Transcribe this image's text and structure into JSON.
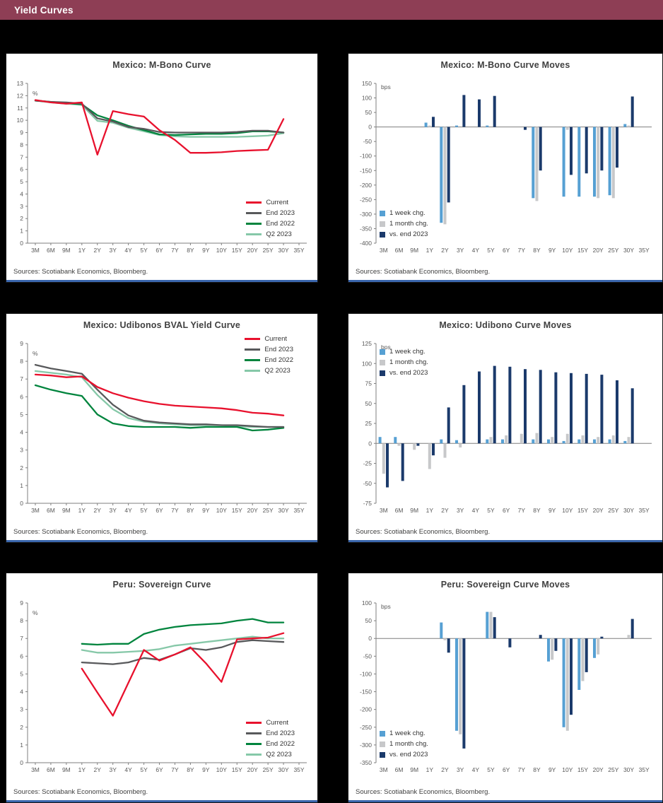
{
  "header": {
    "title": "Yield Curves"
  },
  "colors": {
    "header_bar": "#8e3e55",
    "panel_rule": "#3a66ac",
    "current_red": "#e8112d",
    "end_2023_gray": "#58595b",
    "end_2022_green": "#00843d",
    "q2_2023_light_green": "#86c8a8",
    "one_week_blue": "#56a0d3",
    "one_month_gray": "#c7c8ca",
    "vs_end_2023_navy": "#1b3a6b"
  },
  "sources_note": "Sources: Scotiabank Economics, Bloomberg.",
  "chart_data": [
    {
      "type": "line",
      "title": "Mexico: M-Bono Curve",
      "ylabel": "%",
      "ylim": [
        0,
        13
      ],
      "ytick_step": 1,
      "grid": false,
      "legend_position": "bottom-right",
      "categories": [
        "3M",
        "6M",
        "9M",
        "1Y",
        "2Y",
        "3Y",
        "4Y",
        "5Y",
        "6Y",
        "7Y",
        "8Y",
        "9Y",
        "10Y",
        "15Y",
        "20Y",
        "25Y",
        "30Y",
        "35Y"
      ],
      "series": [
        {
          "name": "Current",
          "color": "#e8112d",
          "values": [
            11.65,
            11.45,
            11.35,
            11.45,
            7.2,
            10.75,
            10.5,
            10.3,
            9.2,
            8.4,
            7.35,
            7.35,
            7.4,
            7.5,
            7.55,
            7.6,
            10.1,
            null
          ]
        },
        {
          "name": "End 2023",
          "color": "#58595b",
          "values": [
            11.6,
            11.5,
            11.45,
            11.35,
            10.15,
            9.9,
            9.45,
            9.3,
            9.05,
            9.0,
            9.0,
            9.0,
            9.0,
            9.05,
            9.15,
            9.15,
            9.0,
            null
          ]
        },
        {
          "name": "End 2022",
          "color": "#00843d",
          "values": [
            11.6,
            11.5,
            11.4,
            11.3,
            10.4,
            10.0,
            9.55,
            9.2,
            8.85,
            8.8,
            8.85,
            8.9,
            8.9,
            8.95,
            9.1,
            9.1,
            9.0,
            null
          ]
        },
        {
          "name": "Q2 2023",
          "color": "#86c8a8",
          "values": [
            11.6,
            11.45,
            11.35,
            11.25,
            9.95,
            9.8,
            9.4,
            9.1,
            8.8,
            8.7,
            8.65,
            8.65,
            8.65,
            8.65,
            8.7,
            8.75,
            8.95,
            null
          ]
        }
      ]
    },
    {
      "type": "bar",
      "title": "Mexico: M-Bono Curve Moves",
      "ylabel": "bps",
      "ylim": [
        -400,
        150
      ],
      "ytick_step": 50,
      "grid": false,
      "legend_position": "bottom-left",
      "categories": [
        "3M",
        "6M",
        "9M",
        "1Y",
        "2Y",
        "3Y",
        "4Y",
        "5Y",
        "6Y",
        "7Y",
        "8Y",
        "9Y",
        "10Y",
        "15Y",
        "20Y",
        "25Y",
        "30Y",
        "35Y"
      ],
      "series": [
        {
          "name": "1 week chg.",
          "color": "#56a0d3",
          "values": [
            0,
            0,
            0,
            15,
            -330,
            5,
            0,
            5,
            0,
            0,
            -245,
            0,
            -240,
            -240,
            -240,
            -235,
            10,
            0
          ]
        },
        {
          "name": "1 month chg.",
          "color": "#c7c8ca",
          "values": [
            0,
            0,
            0,
            5,
            -335,
            0,
            0,
            0,
            0,
            0,
            -255,
            0,
            -10,
            0,
            -245,
            -245,
            5,
            0
          ]
        },
        {
          "name": "vs. end 2023",
          "color": "#1b3a6b",
          "values": [
            0,
            0,
            0,
            35,
            -260,
            110,
            95,
            107,
            0,
            -10,
            -150,
            0,
            -165,
            -160,
            -150,
            -140,
            105,
            0
          ]
        }
      ]
    },
    {
      "type": "line",
      "title": "Mexico: Udibonos BVAL Yield Curve",
      "ylabel": "%",
      "ylim": [
        0,
        9
      ],
      "ytick_step": 1,
      "grid": false,
      "legend_position": "top-right",
      "categories": [
        "3M",
        "6M",
        "9M",
        "1Y",
        "2Y",
        "3Y",
        "4Y",
        "5Y",
        "6Y",
        "7Y",
        "8Y",
        "9Y",
        "10Y",
        "15Y",
        "20Y",
        "25Y",
        "30Y",
        "35Y"
      ],
      "series": [
        {
          "name": "Current",
          "color": "#e8112d",
          "values": [
            7.25,
            7.2,
            7.1,
            7.15,
            6.55,
            6.2,
            5.95,
            5.75,
            5.6,
            5.5,
            5.45,
            5.4,
            5.35,
            5.25,
            5.1,
            5.05,
            4.95,
            null
          ]
        },
        {
          "name": "End 2023",
          "color": "#58595b",
          "values": [
            7.8,
            7.6,
            7.45,
            7.3,
            6.4,
            5.55,
            4.95,
            4.65,
            4.55,
            4.5,
            4.45,
            4.45,
            4.4,
            4.4,
            4.35,
            4.3,
            4.3,
            null
          ]
        },
        {
          "name": "End 2022",
          "color": "#00843d",
          "values": [
            6.65,
            6.4,
            6.2,
            6.05,
            5.0,
            4.5,
            4.35,
            4.3,
            4.3,
            4.3,
            4.25,
            4.3,
            4.3,
            4.3,
            4.1,
            4.15,
            4.25,
            null
          ]
        },
        {
          "name": "Q2 2023",
          "color": "#86c8a8",
          "values": [
            7.45,
            7.35,
            7.25,
            7.1,
            6.1,
            5.3,
            4.8,
            4.6,
            4.5,
            4.45,
            4.4,
            4.4,
            4.4,
            4.35,
            4.3,
            4.3,
            4.3,
            null
          ]
        }
      ]
    },
    {
      "type": "bar",
      "title": "Mexico: Udibono Curve Moves",
      "ylabel": "bps",
      "ylim": [
        -75,
        125
      ],
      "ytick_step": 25,
      "grid": false,
      "legend_position": "top-left",
      "categories": [
        "3M",
        "6M",
        "9M",
        "1Y",
        "2Y",
        "3Y",
        "4Y",
        "5Y",
        "6Y",
        "7Y",
        "8Y",
        "9Y",
        "10Y",
        "15Y",
        "20Y",
        "25Y",
        "30Y",
        "35Y"
      ],
      "series": [
        {
          "name": "1 week chg.",
          "color": "#56a0d3",
          "values": [
            8,
            8,
            0,
            0,
            5,
            4,
            0,
            5,
            5,
            0,
            5,
            5,
            3,
            5,
            5,
            5,
            3,
            0
          ]
        },
        {
          "name": "1 month chg.",
          "color": "#c7c8ca",
          "values": [
            -38,
            -3,
            -8,
            -32,
            -18,
            -5,
            0,
            8,
            10,
            12,
            13,
            8,
            12,
            10,
            8,
            10,
            8,
            0
          ]
        },
        {
          "name": "vs. end 2023",
          "color": "#1b3a6b",
          "values": [
            -55,
            -47,
            -3,
            -15,
            45,
            73,
            90,
            97,
            96,
            93,
            92,
            89,
            88,
            87,
            86,
            79,
            69,
            0
          ]
        }
      ]
    },
    {
      "type": "line",
      "title": "Peru: Sovereign Curve",
      "ylabel": "%",
      "ylim": [
        0,
        9
      ],
      "ytick_step": 1,
      "grid": false,
      "legend_position": "bottom-right",
      "categories": [
        "3M",
        "6M",
        "9M",
        "1Y",
        "2Y",
        "3Y",
        "4Y",
        "5Y",
        "6Y",
        "7Y",
        "8Y",
        "9Y",
        "10Y",
        "15Y",
        "20Y",
        "25Y",
        "30Y",
        "35Y"
      ],
      "series": [
        {
          "name": "Current",
          "color": "#e8112d",
          "values": [
            null,
            null,
            null,
            5.3,
            3.95,
            2.65,
            4.5,
            6.35,
            5.75,
            6.1,
            6.5,
            5.6,
            4.55,
            6.95,
            7.0,
            7.05,
            7.3,
            null
          ]
        },
        {
          "name": "End 2023",
          "color": "#58595b",
          "values": [
            null,
            null,
            null,
            5.65,
            5.6,
            5.55,
            5.65,
            5.9,
            5.8,
            6.1,
            6.45,
            6.35,
            6.5,
            6.8,
            6.9,
            6.85,
            6.8,
            null
          ]
        },
        {
          "name": "End 2022",
          "color": "#00843d",
          "values": [
            null,
            null,
            null,
            6.7,
            6.65,
            6.7,
            6.7,
            7.25,
            7.5,
            7.65,
            7.75,
            7.8,
            7.85,
            8.0,
            8.1,
            7.9,
            7.9,
            null
          ]
        },
        {
          "name": "Q2 2023",
          "color": "#86c8a8",
          "values": [
            null,
            null,
            null,
            6.35,
            6.2,
            6.2,
            6.25,
            6.3,
            6.4,
            6.6,
            6.7,
            6.8,
            6.9,
            7.0,
            7.1,
            7.0,
            7.0,
            null
          ]
        }
      ]
    },
    {
      "type": "bar",
      "title": "Peru: Sovereign Curve Moves",
      "ylabel": "bps",
      "ylim": [
        -350,
        100
      ],
      "ytick_step": 50,
      "grid": false,
      "legend_position": "bottom-left",
      "categories": [
        "3M",
        "6M",
        "9M",
        "1Y",
        "2Y",
        "3Y",
        "4Y",
        "5Y",
        "6Y",
        "7Y",
        "8Y",
        "9Y",
        "10Y",
        "15Y",
        "20Y",
        "25Y",
        "30Y",
        "35Y"
      ],
      "series": [
        {
          "name": "1 week chg.",
          "color": "#56a0d3",
          "values": [
            0,
            0,
            0,
            0,
            45,
            -260,
            0,
            75,
            0,
            0,
            0,
            -65,
            -250,
            -145,
            -55,
            0,
            0,
            0
          ]
        },
        {
          "name": "1 month chg.",
          "color": "#c7c8ca",
          "values": [
            0,
            0,
            0,
            0,
            -5,
            -270,
            0,
            75,
            0,
            0,
            0,
            -60,
            -260,
            -120,
            -45,
            0,
            10,
            0
          ]
        },
        {
          "name": "vs. end 2023",
          "color": "#1b3a6b",
          "values": [
            0,
            0,
            0,
            0,
            -40,
            -310,
            0,
            60,
            -25,
            0,
            10,
            -35,
            -215,
            -95,
            5,
            0,
            55,
            0
          ]
        }
      ]
    }
  ]
}
